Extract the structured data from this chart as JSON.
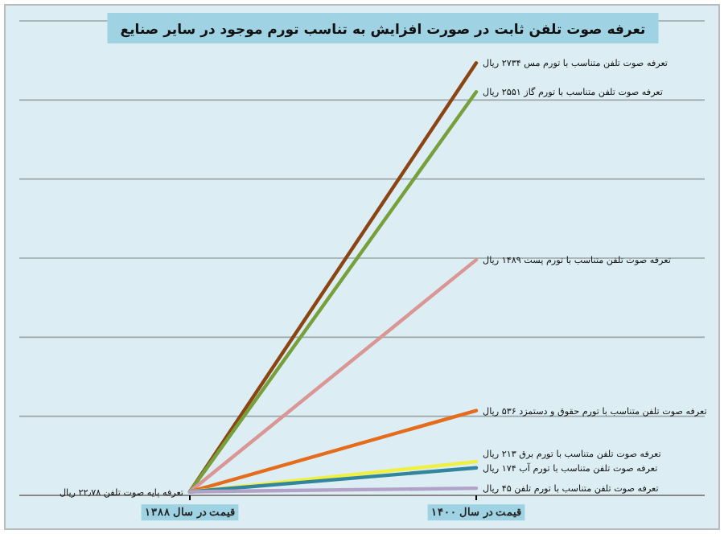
{
  "chart_data": {
    "type": "line",
    "title": "تعرفه صوت تلفن ثابت در صورت افزایش به تناسب تورم موجود در سایر صنایع",
    "categories": [
      "قیمت در سال ۱۳۸۸",
      "قیمت در سال ۱۴۰۰"
    ],
    "ylim": [
      0,
      3000
    ],
    "yticks": [
      {
        "value": 500,
        "label": null
      },
      {
        "value": 1000,
        "label": null
      },
      {
        "value": 1500,
        "label": null
      },
      {
        "value": 2000,
        "label": null
      },
      {
        "value": 2500,
        "label": null
      },
      {
        "value": 3000,
        "label": null
      }
    ],
    "tick_labels": "x",
    "grid": "y",
    "marker": "none",
    "line_style": "solid",
    "series": [
      {
        "color": "#8b4513",
        "values": [
          22.78,
          2734
        ],
        "value_labels": [
          null,
          "تعرفه صوت تلفن متناسب با تورم مس ۲۷۳۴ ریال"
        ]
      },
      {
        "color": "#77a03c",
        "values": [
          22.78,
          2551
        ],
        "value_labels": [
          null,
          "تعرفه صوت تلفن متناسب با تورم گاز ۲۵۵۱ ریال"
        ]
      },
      {
        "color": "#d99694",
        "values": [
          22.78,
          1489
        ],
        "value_labels": [
          null,
          "تعرفه صوت تلفن متناسب با تورم پست ۱۴۸۹ ریال"
        ]
      },
      {
        "color": "#e46c1c",
        "values": [
          22.78,
          536
        ],
        "value_labels": [
          null,
          "تعرفه صوت تلفن متناسب با تورم حقوق و دستمزد ۵۳۶ ریال"
        ]
      },
      {
        "color": "#f0f040",
        "values": [
          22.78,
          213
        ],
        "value_labels": [
          null,
          "تعرفه صوت تلفن متناسب با تورم برق ۲۱۳ ریال"
        ]
      },
      {
        "color": "#31859c",
        "values": [
          22.78,
          174
        ],
        "value_labels": [
          null,
          "تعرفه صوت تلفن متناسب با تورم آب ۱۷۴ ریال"
        ]
      },
      {
        "color": "#b3a2c7",
        "values": [
          22.78,
          45
        ],
        "value_labels": [
          null,
          "تعرفه صوت تلفن متناسب با تورم تلفن ۴۵ ریال"
        ]
      }
    ],
    "annotations": [
      {
        "text": "تعرفه پایه صوت تلفن ۲۲٫۷۸ ریال",
        "x": "قیمت در سال ۱۳۸۸",
        "y": 22.78
      }
    ]
  }
}
